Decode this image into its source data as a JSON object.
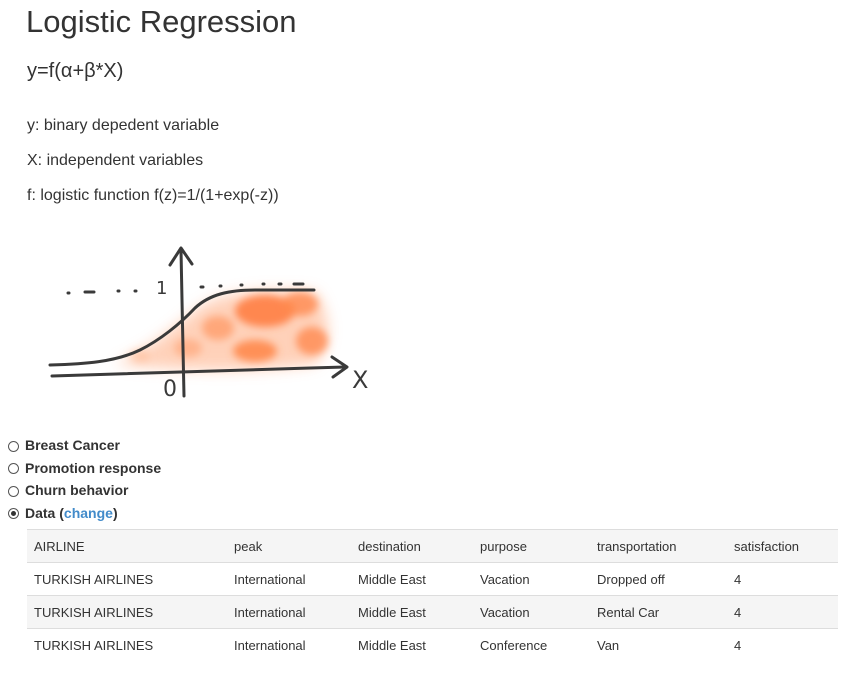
{
  "heading": {
    "title": "Logistic Regression",
    "formula": "y=f(α+β*X)"
  },
  "definitions": [
    "y: binary depedent variable",
    "X: independent variables",
    "f: logistic function f(z)=1/(1+exp(-z))"
  ],
  "sketch": {
    "one_label": "1",
    "zero_label": "0",
    "x_label": "X",
    "colors": {
      "ink": "#3a3a3a",
      "blob": "#ff7a3c"
    }
  },
  "datasets": {
    "options": [
      {
        "label": "Breast Cancer",
        "selected": false
      },
      {
        "label": "Promotion response",
        "selected": false
      },
      {
        "label": "Churn behavior",
        "selected": false
      },
      {
        "label": "Data",
        "selected": true
      }
    ],
    "data_open": " (",
    "change_label": "change",
    "data_close": ")"
  },
  "table": {
    "columns": [
      "AIRLINE",
      "peak",
      "destination",
      "purpose",
      "transportation",
      "satisfaction"
    ],
    "rows": [
      [
        "TURKISH AIRLINES",
        "International",
        "Middle East",
        "Vacation",
        "Dropped off",
        "4"
      ],
      [
        "TURKISH AIRLINES",
        "International",
        "Middle East",
        "Vacation",
        "Rental Car",
        "4"
      ],
      [
        "TURKISH AIRLINES",
        "International",
        "Middle East",
        "Conference",
        "Van",
        "4"
      ]
    ]
  },
  "colors": {
    "link": "#428bca",
    "text": "#333333",
    "row_alt": "#f5f5f5",
    "border": "#dddddd"
  }
}
